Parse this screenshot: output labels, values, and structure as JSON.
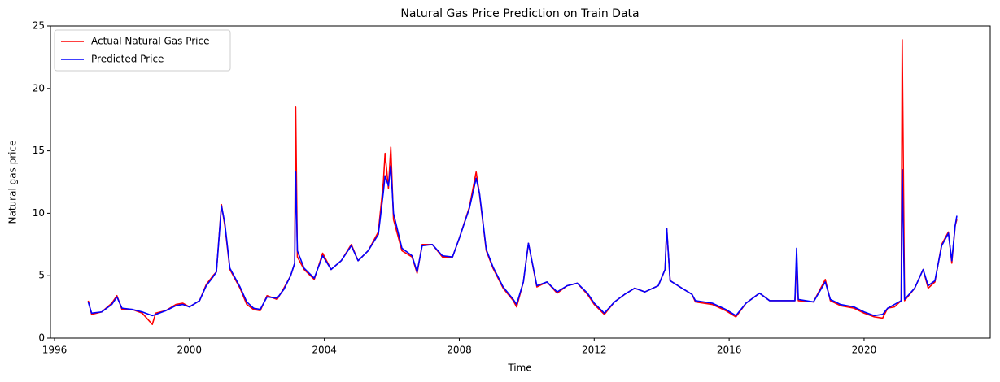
{
  "chart_data": {
    "type": "line",
    "title": "Natural Gas Price Prediction on Train Data",
    "x_label": "Time",
    "y_label": "Natural gas price",
    "x": [
      1997.0,
      1997.1,
      1997.4,
      1997.7,
      1997.85,
      1998.0,
      1998.3,
      1998.6,
      1998.9,
      1999.0,
      1999.3,
      1999.6,
      1999.8,
      2000.0,
      2000.3,
      2000.5,
      2000.7,
      2000.8,
      2000.95,
      2001.05,
      2001.2,
      2001.5,
      2001.7,
      2001.9,
      2002.1,
      2002.3,
      2002.6,
      2002.8,
      2003.0,
      2003.12,
      2003.15,
      2003.2,
      2003.4,
      2003.7,
      2003.95,
      2004.2,
      2004.5,
      2004.8,
      2005.0,
      2005.3,
      2005.6,
      2005.75,
      2005.8,
      2005.9,
      2005.97,
      2006.05,
      2006.3,
      2006.6,
      2006.75,
      2006.9,
      2007.2,
      2007.5,
      2007.8,
      2008.0,
      2008.3,
      2008.5,
      2008.6,
      2008.8,
      2009.0,
      2009.3,
      2009.6,
      2009.7,
      2009.9,
      2010.05,
      2010.3,
      2010.6,
      2010.9,
      2011.2,
      2011.5,
      2011.8,
      2012.0,
      2012.3,
      2012.6,
      2012.9,
      2013.2,
      2013.5,
      2013.9,
      2014.1,
      2014.15,
      2014.25,
      2014.6,
      2014.9,
      2015.0,
      2015.5,
      2015.9,
      2016.2,
      2016.5,
      2016.9,
      2017.2,
      2017.6,
      2017.95,
      2018.0,
      2018.05,
      2018.5,
      2018.85,
      2019.0,
      2019.3,
      2019.7,
      2020.0,
      2020.3,
      2020.55,
      2020.7,
      2020.9,
      2021.1,
      2021.13,
      2021.2,
      2021.5,
      2021.75,
      2021.9,
      2022.1,
      2022.3,
      2022.5,
      2022.6,
      2022.7,
      2022.75
    ],
    "series": [
      {
        "name": "Actual Natural Gas Price",
        "color": "#ff0000",
        "values": [
          3.0,
          1.9,
          2.1,
          2.8,
          3.4,
          2.3,
          2.3,
          2.0,
          1.1,
          2.0,
          2.2,
          2.7,
          2.8,
          2.5,
          3.0,
          4.3,
          5.0,
          5.3,
          10.7,
          9.0,
          5.5,
          4.0,
          2.7,
          2.3,
          2.2,
          3.4,
          3.1,
          4.0,
          5.0,
          6.0,
          18.5,
          6.5,
          5.5,
          4.7,
          6.8,
          5.5,
          6.2,
          7.5,
          6.2,
          7.0,
          8.5,
          12.5,
          14.8,
          12.0,
          15.3,
          9.5,
          7.0,
          6.5,
          5.2,
          7.5,
          7.5,
          6.5,
          6.5,
          8.0,
          10.5,
          13.3,
          11.5,
          7.0,
          5.6,
          4.0,
          3.0,
          2.5,
          4.5,
          7.6,
          4.1,
          4.5,
          3.6,
          4.2,
          4.4,
          3.5,
          2.7,
          1.9,
          2.9,
          3.5,
          4.0,
          3.7,
          4.2,
          5.5,
          8.8,
          4.6,
          4.0,
          3.5,
          2.9,
          2.7,
          2.2,
          1.7,
          2.8,
          3.6,
          3.0,
          3.0,
          3.0,
          6.0,
          3.0,
          2.9,
          4.7,
          3.0,
          2.6,
          2.4,
          2.0,
          1.7,
          1.6,
          2.4,
          2.5,
          3.0,
          23.9,
          3.0,
          4.0,
          5.5,
          4.0,
          4.5,
          7.5,
          8.5,
          6.0,
          9.0,
          9.5
        ]
      },
      {
        "name": "Predicted Price",
        "color": "#0000ff",
        "values": [
          2.9,
          2.0,
          2.1,
          2.7,
          3.3,
          2.4,
          2.3,
          2.1,
          1.8,
          1.9,
          2.2,
          2.6,
          2.7,
          2.5,
          3.0,
          4.2,
          4.9,
          5.3,
          10.6,
          9.2,
          5.6,
          4.1,
          2.9,
          2.4,
          2.3,
          3.3,
          3.2,
          3.9,
          5.0,
          6.0,
          13.3,
          7.0,
          5.6,
          4.8,
          6.6,
          5.5,
          6.2,
          7.4,
          6.2,
          7.0,
          8.3,
          11.7,
          13.0,
          12.2,
          13.8,
          10.0,
          7.2,
          6.6,
          5.3,
          7.4,
          7.5,
          6.6,
          6.5,
          8.0,
          10.4,
          12.8,
          11.6,
          7.1,
          5.7,
          4.1,
          3.1,
          2.7,
          4.5,
          7.6,
          4.2,
          4.5,
          3.7,
          4.2,
          4.4,
          3.6,
          2.8,
          2.0,
          2.9,
          3.5,
          4.0,
          3.7,
          4.2,
          5.5,
          8.8,
          4.6,
          4.0,
          3.5,
          3.0,
          2.8,
          2.3,
          1.8,
          2.8,
          3.6,
          3.0,
          3.0,
          3.0,
          7.2,
          3.1,
          2.9,
          4.5,
          3.1,
          2.7,
          2.5,
          2.1,
          1.8,
          1.9,
          2.4,
          2.7,
          3.0,
          13.5,
          3.1,
          4.0,
          5.5,
          4.2,
          4.6,
          7.4,
          8.4,
          6.2,
          9.0,
          9.8
        ]
      }
    ],
    "xlim": [
      1995.88,
      2023.74
    ],
    "xticks": [
      1996,
      2000,
      2004,
      2008,
      2012,
      2016,
      2020
    ],
    "ylim": [
      0,
      25
    ],
    "yticks": [
      0,
      5,
      10,
      15,
      20,
      25
    ],
    "grid": false,
    "legend": "upper left"
  }
}
